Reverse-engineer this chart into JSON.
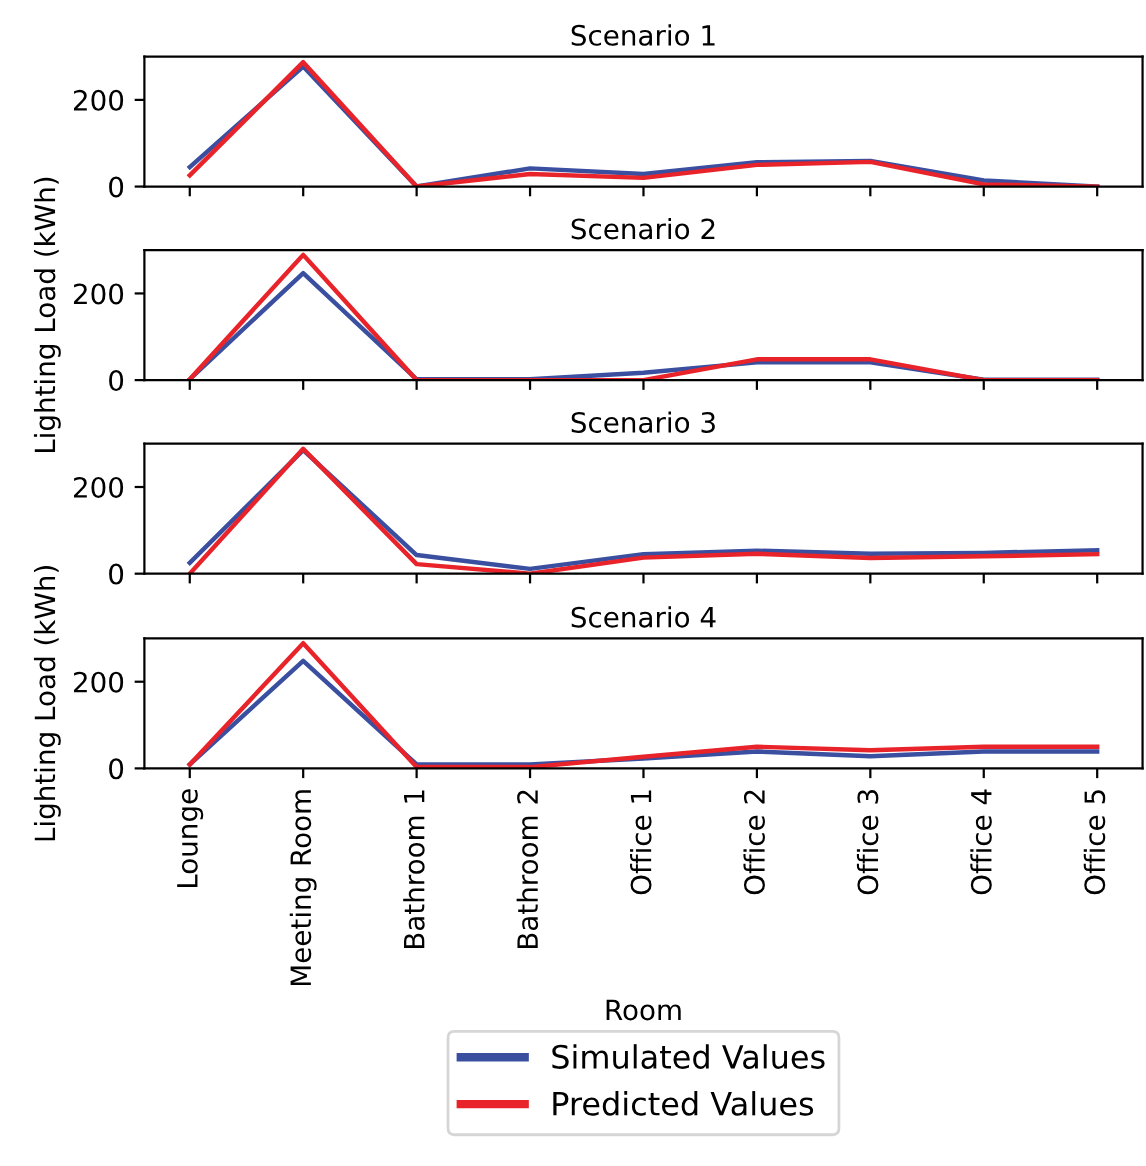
{
  "chart_data": [
    {
      "type": "line",
      "title": "Scenario 1",
      "categories": [
        null,
        null,
        null,
        null,
        null,
        null,
        null,
        null,
        null
      ],
      "ylim": [
        0,
        300
      ],
      "yticks": [
        0,
        200
      ],
      "tick_labels": "y",
      "series": [
        {
          "color": "#3a4fa0",
          "values": [
            45,
            277,
            0,
            42,
            29,
            56,
            59,
            14,
            0
          ]
        },
        {
          "color": "#e8232a",
          "values": [
            26,
            287,
            0,
            29,
            20,
            50,
            57,
            5,
            0
          ]
        }
      ]
    },
    {
      "type": "line",
      "title": "Scenario 2",
      "ylabel": "Lighting Load (kWh)",
      "categories": [
        null,
        null,
        null,
        null,
        null,
        null,
        null,
        null,
        null
      ],
      "ylim": [
        0,
        300
      ],
      "yticks": [
        0,
        200
      ],
      "tick_labels": "y",
      "series": [
        {
          "color": "#3a4fa0",
          "values": [
            2,
            247,
            2,
            2,
            17,
            41,
            41,
            1,
            1
          ]
        },
        {
          "color": "#e8232a",
          "values": [
            2,
            289,
            0,
            0,
            0,
            48,
            48,
            0,
            0
          ]
        }
      ]
    },
    {
      "type": "line",
      "title": "Scenario 3",
      "categories": [
        null,
        null,
        null,
        null,
        null,
        null,
        null,
        null,
        null
      ],
      "ylim": [
        0,
        300
      ],
      "yticks": [
        0,
        200
      ],
      "tick_labels": "y",
      "series": [
        {
          "color": "#3a4fa0",
          "values": [
            25,
            285,
            43,
            11,
            45,
            53,
            46,
            48,
            54
          ]
        },
        {
          "color": "#e8232a",
          "values": [
            0,
            288,
            22,
            0,
            37,
            46,
            36,
            40,
            45
          ]
        }
      ]
    },
    {
      "type": "line",
      "title": "Scenario 4",
      "ylabel": "Lighting Load (kWh)",
      "xlabel": "Room",
      "categories": [
        "Lounge",
        "Meeting Room",
        "Bathroom 1",
        "Bathroom 2",
        "Office 1",
        "Office 2",
        "Office 3",
        "Office 4",
        "Office 5"
      ],
      "ylim": [
        0,
        300
      ],
      "yticks": [
        0,
        200
      ],
      "legend": "bottom",
      "series": [
        {
          "name": "Simulated Values",
          "color": "#3a4fa0",
          "values": [
            9,
            248,
            9,
            9,
            23,
            39,
            28,
            39,
            39
          ]
        },
        {
          "name": "Predicted Values",
          "color": "#e8232a",
          "values": [
            9,
            289,
            3,
            3,
            27,
            50,
            42,
            50,
            50
          ]
        }
      ]
    }
  ]
}
